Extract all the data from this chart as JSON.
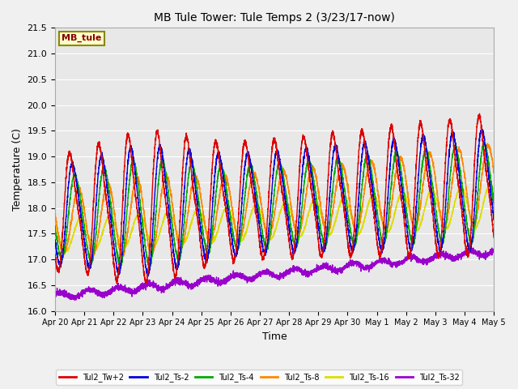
{
  "title": "MB Tule Tower: Tule Temps 2 (3/23/17-now)",
  "xlabel": "Time",
  "ylabel": "Temperature (C)",
  "ylim": [
    16.0,
    21.5
  ],
  "yticks": [
    16.0,
    16.5,
    17.0,
    17.5,
    18.0,
    18.5,
    19.0,
    19.5,
    20.0,
    20.5,
    21.0,
    21.5
  ],
  "xtick_labels": [
    "Apr 20",
    "Apr 21",
    "Apr 22",
    "Apr 23",
    "Apr 24",
    "Apr 25",
    "Apr 26",
    "Apr 27",
    "Apr 28",
    "Apr 29",
    "Apr 30",
    "May 1",
    "May 2",
    "May 3",
    "May 4",
    "May 5"
  ],
  "fig_bg": "#f0f0f0",
  "plot_bg": "#e8e8e8",
  "grid_color": "#ffffff",
  "line_colors": {
    "Tw2": "#dd0000",
    "Ts2": "#0000dd",
    "Ts4": "#00aa00",
    "Ts8": "#ff8800",
    "Ts16": "#dddd00",
    "Ts32": "#9900cc"
  },
  "legend_labels": [
    "Tul2_Tw+2",
    "Tul2_Ts-2",
    "Tul2_Ts-4",
    "Tul2_Ts-8",
    "Tul2_Ts-16",
    "Tul2_Ts-32"
  ],
  "annotation_text": "MB_tule",
  "annotation_bg": "#ffffcc",
  "annotation_border": "#888800",
  "annotation_text_color": "#880000",
  "figsize": [
    6.4,
    4.8
  ],
  "dpi": 100
}
